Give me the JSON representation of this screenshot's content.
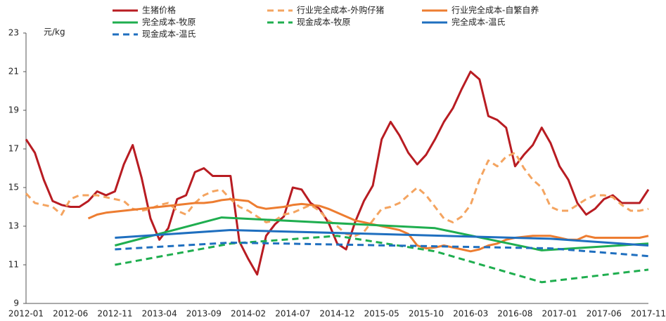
{
  "chart_data": {
    "type": "line",
    "y_label": "元/kg",
    "ylim": [
      9,
      23
    ],
    "yticks": [
      9,
      11,
      13,
      15,
      17,
      19,
      21,
      23
    ],
    "categories": [
      "2012-01",
      null,
      null,
      null,
      null,
      "2012-06",
      null,
      null,
      null,
      null,
      "2012-11",
      null,
      null,
      null,
      null,
      "2013-04",
      null,
      null,
      null,
      null,
      "2013-09",
      null,
      null,
      null,
      null,
      "2014-02",
      null,
      null,
      null,
      null,
      "2014-07",
      null,
      null,
      null,
      null,
      "2014-12",
      null,
      null,
      null,
      null,
      "2015-05",
      null,
      null,
      null,
      null,
      "2015-10",
      null,
      null,
      null,
      null,
      "2016-03",
      null,
      null,
      null,
      null,
      "2016-08",
      null,
      null,
      null,
      null,
      "2017-01",
      null,
      null,
      null,
      null,
      "2017-06",
      null,
      null,
      null,
      null,
      "2017-11"
    ],
    "series": [
      {
        "name": "生猪价格",
        "color": "#b81c22",
        "style": "solid",
        "values": [
          17.5,
          16.8,
          15.4,
          14.3,
          14.1,
          14.0,
          14.0,
          14.3,
          14.8,
          14.6,
          14.8,
          16.2,
          17.2,
          15.5,
          13.4,
          12.3,
          12.9,
          14.4,
          14.6,
          15.8,
          16.0,
          15.6,
          15.6,
          15.6,
          12.2,
          11.3,
          10.5,
          12.5,
          13.1,
          13.5,
          15.0,
          14.9,
          14.2,
          13.9,
          13.2,
          12.1,
          11.8,
          13.2,
          14.3,
          15.1,
          17.5,
          18.4,
          17.7,
          16.8,
          16.2,
          16.7,
          17.5,
          18.4,
          19.1,
          20.1,
          21.0,
          20.6,
          18.7,
          18.5,
          18.1,
          16.1,
          16.7,
          17.2,
          18.1,
          17.3,
          16.1,
          15.4,
          14.2,
          13.6,
          13.9,
          14.4,
          14.6,
          14.2,
          14.2,
          14.2,
          14.9
        ]
      },
      {
        "name": "行业完全成本-外购仔猪",
        "color": "#f4a460",
        "style": "dashed",
        "values": [
          14.7,
          14.2,
          14.1,
          14.0,
          13.6,
          14.4,
          14.6,
          14.6,
          14.6,
          14.5,
          14.4,
          14.3,
          13.9,
          13.8,
          13.9,
          14.1,
          14.2,
          13.8,
          13.6,
          14.2,
          14.6,
          14.8,
          14.9,
          14.4,
          14.0,
          13.8,
          13.5,
          13.2,
          13.3,
          13.6,
          13.7,
          13.9,
          14.1,
          13.8,
          13.3,
          13.0,
          12.6,
          12.5,
          12.7,
          13.3,
          13.9,
          14.0,
          14.2,
          14.6,
          15.0,
          14.6,
          14.0,
          13.4,
          13.2,
          13.5,
          14.1,
          15.4,
          16.4,
          16.1,
          16.6,
          16.8,
          16.0,
          15.4,
          15.0,
          14.0,
          13.8,
          13.8,
          14.1,
          14.4,
          14.6,
          14.6,
          14.5,
          14.1,
          13.8,
          13.8,
          13.9
        ]
      },
      {
        "name": "行业完全成本-自繁自养",
        "color": "#ed7d31",
        "style": "solid",
        "values": [
          null,
          null,
          null,
          null,
          null,
          null,
          null,
          13.4,
          13.6,
          13.7,
          13.75,
          13.8,
          13.85,
          13.9,
          13.95,
          14.0,
          14.05,
          14.1,
          14.15,
          14.2,
          14.2,
          14.25,
          14.35,
          14.4,
          14.35,
          14.3,
          14.0,
          13.9,
          13.95,
          14.0,
          14.1,
          14.15,
          14.1,
          14.05,
          13.9,
          13.7,
          13.5,
          13.3,
          13.2,
          13.1,
          13.0,
          12.9,
          12.8,
          12.6,
          12.0,
          11.85,
          11.9,
          12.0,
          11.9,
          11.8,
          11.7,
          11.8,
          12.0,
          12.1,
          12.3,
          12.4,
          12.45,
          12.5,
          12.5,
          12.5,
          12.4,
          12.3,
          12.3,
          12.5,
          12.4,
          12.4,
          12.4,
          12.4,
          12.4,
          12.4,
          12.5
        ]
      },
      {
        "name": "完全成本-牧原",
        "color": "#1fae4f",
        "style": "solid",
        "x": [
          "2012-11",
          "2013-11",
          "2015-11",
          "2016-11",
          "2017-11"
        ],
        "values": [
          12.0,
          13.45,
          12.9,
          11.75,
          12.1
        ]
      },
      {
        "name": "现金成本-牧原",
        "color": "#1fae4f",
        "style": "dashed",
        "x": [
          "2012-11",
          "2013-12",
          "2014-12",
          "2015-11",
          "2016-11",
          "2017-11"
        ],
        "values": [
          11.0,
          12.1,
          12.5,
          11.7,
          10.1,
          10.75
        ]
      },
      {
        "name": "完全成本-温氏",
        "color": "#1f6fbf",
        "style": "solid",
        "x": [
          "2012-11",
          "2013-12",
          "2016-12",
          "2017-11"
        ],
        "values": [
          12.4,
          12.8,
          12.35,
          12.0
        ]
      },
      {
        "name": "现金成本-温氏",
        "color": "#1f6fbf",
        "style": "dashed",
        "x": [
          "2012-11",
          "2013-12",
          "2016-12",
          "2017-11"
        ],
        "values": [
          11.8,
          12.15,
          11.85,
          11.45
        ]
      }
    ]
  }
}
